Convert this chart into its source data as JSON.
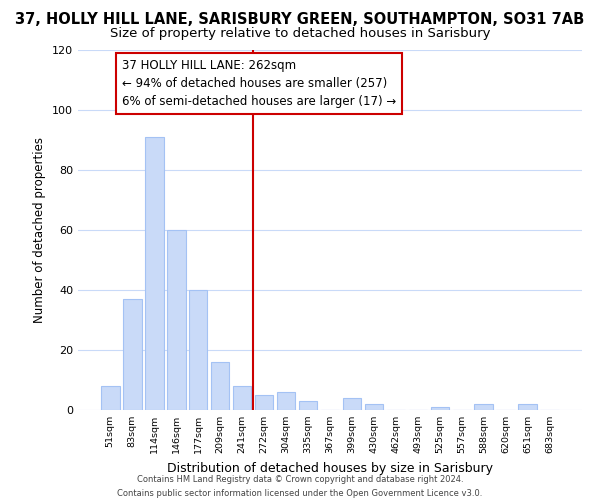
{
  "title": "37, HOLLY HILL LANE, SARISBURY GREEN, SOUTHAMPTON, SO31 7AB",
  "subtitle": "Size of property relative to detached houses in Sarisbury",
  "xlabel": "Distribution of detached houses by size in Sarisbury",
  "ylabel": "Number of detached properties",
  "bar_labels": [
    "51sqm",
    "83sqm",
    "114sqm",
    "146sqm",
    "177sqm",
    "209sqm",
    "241sqm",
    "272sqm",
    "304sqm",
    "335sqm",
    "367sqm",
    "399sqm",
    "430sqm",
    "462sqm",
    "493sqm",
    "525sqm",
    "557sqm",
    "588sqm",
    "620sqm",
    "651sqm",
    "683sqm"
  ],
  "bar_values": [
    8,
    37,
    91,
    60,
    40,
    16,
    8,
    5,
    6,
    3,
    0,
    4,
    2,
    0,
    0,
    1,
    0,
    2,
    0,
    2,
    0
  ],
  "bar_color": "#c9daf8",
  "bar_edge_color": "#a4c2f4",
  "vline_x": 6.5,
  "vline_color": "#cc0000",
  "annotation_title": "37 HOLLY HILL LANE: 262sqm",
  "annotation_line1": "← 94% of detached houses are smaller (257)",
  "annotation_line2": "6% of semi-detached houses are larger (17) →",
  "annotation_box_facecolor": "#ffffff",
  "annotation_box_edgecolor": "#cc0000",
  "ylim": [
    0,
    120
  ],
  "yticks": [
    0,
    20,
    40,
    60,
    80,
    100,
    120
  ],
  "footer_line1": "Contains HM Land Registry data © Crown copyright and database right 2024.",
  "footer_line2": "Contains public sector information licensed under the Open Government Licence v3.0.",
  "background_color": "#ffffff",
  "grid_color": "#c9daf8",
  "title_fontsize": 10.5,
  "subtitle_fontsize": 9.5,
  "annotation_fontsize": 8.5
}
